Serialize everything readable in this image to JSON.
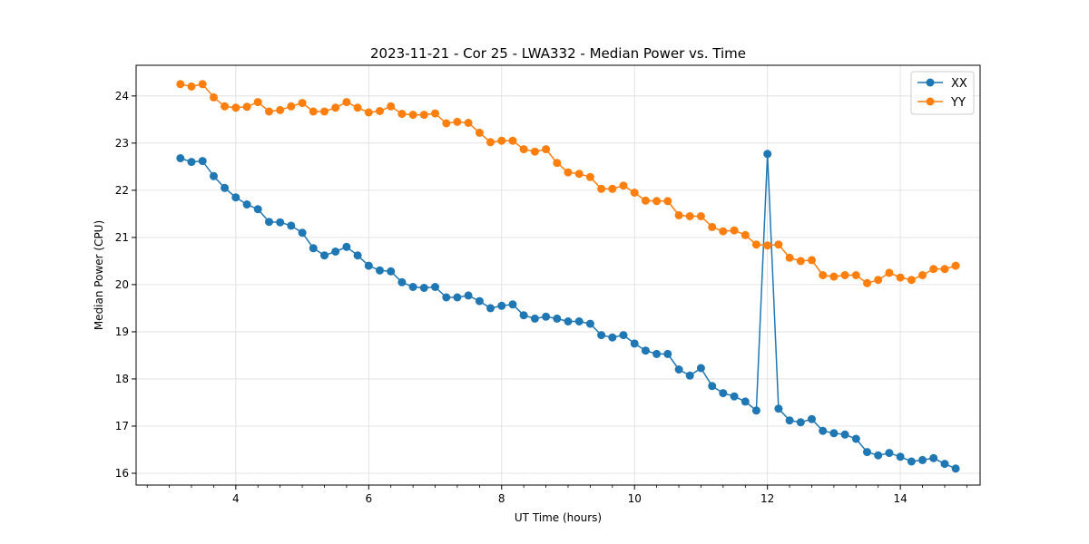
{
  "chart_data": {
    "type": "line",
    "title": "2023-11-21 - Cor 25 - LWA332 - Median Power vs. Time",
    "xlabel": "UT Time (hours)",
    "ylabel": "Median Power (CPU)",
    "xlim": [
      2.5,
      15.2
    ],
    "ylim": [
      15.75,
      24.65
    ],
    "x_ticks": [
      4,
      6,
      8,
      10,
      12,
      14
    ],
    "x_minor_ticks": [
      2.667,
      3.0,
      3.333,
      3.667,
      4.333,
      4.667,
      5.0,
      5.333,
      5.667,
      6.333,
      6.667,
      7.0,
      7.333,
      7.667,
      8.333,
      8.667,
      9.0,
      9.333,
      9.667,
      10.333,
      10.667,
      11.0,
      11.333,
      11.667,
      12.333,
      12.667,
      13.0,
      13.333,
      13.667,
      14.333,
      14.667,
      15.0
    ],
    "y_ticks": [
      16,
      17,
      18,
      19,
      20,
      21,
      22,
      23,
      24
    ],
    "grid": true,
    "legend_position": "top-right",
    "x": [
      3.167,
      3.333,
      3.5,
      3.667,
      3.833,
      4.0,
      4.167,
      4.333,
      4.5,
      4.667,
      4.833,
      5.0,
      5.167,
      5.333,
      5.5,
      5.667,
      5.833,
      6.0,
      6.167,
      6.333,
      6.5,
      6.667,
      6.833,
      7.0,
      7.167,
      7.333,
      7.5,
      7.667,
      7.833,
      8.0,
      8.167,
      8.333,
      8.5,
      8.667,
      8.833,
      9.0,
      9.167,
      9.333,
      9.5,
      9.667,
      9.833,
      10.0,
      10.167,
      10.333,
      10.5,
      10.667,
      10.833,
      11.0,
      11.167,
      11.333,
      11.5,
      11.667,
      11.833,
      12.0,
      12.167,
      12.333,
      12.5,
      12.667,
      12.833,
      13.0,
      13.167,
      13.333,
      13.5,
      13.667,
      13.833,
      14.0,
      14.167,
      14.333,
      14.5,
      14.667,
      14.833
    ],
    "series": [
      {
        "name": "XX",
        "color": "#1f77b4",
        "values": [
          22.68,
          22.6,
          22.62,
          22.3,
          22.05,
          21.85,
          21.7,
          21.6,
          21.33,
          21.32,
          21.25,
          21.1,
          20.77,
          20.62,
          20.7,
          20.8,
          20.62,
          20.4,
          20.3,
          20.28,
          20.05,
          19.95,
          19.93,
          19.95,
          19.73,
          19.73,
          19.77,
          19.65,
          19.5,
          19.55,
          19.58,
          19.35,
          19.28,
          19.32,
          19.28,
          19.22,
          19.22,
          19.17,
          18.93,
          18.88,
          18.93,
          18.75,
          18.6,
          18.53,
          18.53,
          18.2,
          18.07,
          18.23,
          17.85,
          17.7,
          17.63,
          17.52,
          17.33,
          22.77,
          17.37,
          17.12,
          17.08,
          17.15,
          16.9,
          16.85,
          16.82,
          16.73,
          16.45,
          16.38,
          16.43,
          16.35,
          16.25,
          16.28,
          16.32,
          16.2,
          16.1
        ]
      },
      {
        "name": "YY",
        "color": "#ff7f0e",
        "values": [
          24.25,
          24.2,
          24.25,
          23.97,
          23.78,
          23.75,
          23.77,
          23.87,
          23.67,
          23.7,
          23.78,
          23.85,
          23.67,
          23.67,
          23.75,
          23.87,
          23.75,
          23.65,
          23.68,
          23.78,
          23.62,
          23.6,
          23.6,
          23.63,
          23.42,
          23.45,
          23.43,
          23.22,
          23.02,
          23.05,
          23.05,
          22.87,
          22.82,
          22.87,
          22.58,
          22.38,
          22.35,
          22.28,
          22.03,
          22.03,
          22.1,
          21.95,
          21.78,
          21.77,
          21.77,
          21.47,
          21.45,
          21.45,
          21.22,
          21.13,
          21.15,
          21.05,
          20.85,
          20.83,
          20.85,
          20.57,
          20.5,
          20.52,
          20.2,
          20.17,
          20.2,
          20.2,
          20.03,
          20.1,
          20.25,
          20.15,
          20.1,
          20.2,
          20.33,
          20.33,
          20.4
        ]
      }
    ]
  }
}
